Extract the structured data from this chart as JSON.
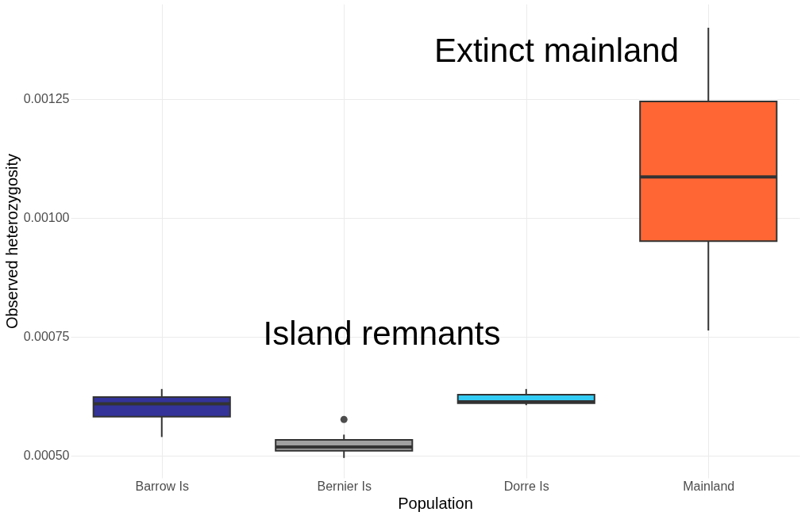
{
  "chart_data": {
    "type": "box",
    "xlabel": "Population",
    "ylabel": "Observed heterozygosity",
    "categories": [
      "Barrow Is",
      "Bernier Is",
      "Dorre Is",
      "Mainland"
    ],
    "colors": [
      "#33339a",
      "#a0a0a0",
      "#33ccf5",
      "#ff6633"
    ],
    "boxes": [
      {
        "low": 0.000539,
        "q1": 0.000582,
        "median": 0.000609,
        "q3": 0.000623,
        "high": 0.00064
      },
      {
        "low": 0.000495,
        "q1": 0.00051,
        "median": 0.000518,
        "q3": 0.000533,
        "high": 0.000544,
        "outliers": [
          0.000576
        ]
      },
      {
        "low": 0.000606,
        "q1": 0.00061,
        "median": 0.000613,
        "q3": 0.000628,
        "high": 0.00064
      },
      {
        "low": 0.000763,
        "q1": 0.000951,
        "median": 0.001086,
        "q3": 0.001245,
        "high": 0.0014
      }
    ],
    "ylim": [
      0.000453,
      0.00145
    ],
    "yticks": [
      {
        "value": 0.0005,
        "label": "0.00050"
      },
      {
        "value": 0.00075,
        "label": "0.00075"
      },
      {
        "value": 0.001,
        "label": "0.00100"
      },
      {
        "value": 0.00125,
        "label": "0.00125"
      }
    ],
    "grid": true,
    "annotations": [
      "Extinct mainland",
      "Island remnants"
    ]
  }
}
